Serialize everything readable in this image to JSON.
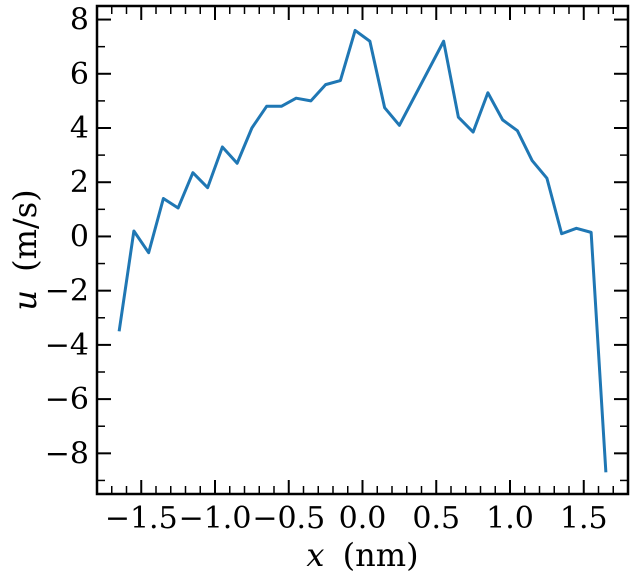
{
  "chart_data": {
    "type": "line",
    "title": "",
    "xlabel": {
      "variable": "x",
      "unit": "(nm)"
    },
    "ylabel": {
      "variable": "u",
      "unit": "(m/s)"
    },
    "xlim": [
      -1.8,
      1.8
    ],
    "ylim": [
      -9.5,
      8.5
    ],
    "xticks": [
      -1.5,
      -1.0,
      -0.5,
      0.0,
      0.5,
      1.0,
      1.5
    ],
    "xtick_labels": [
      "−1.5",
      "−1.0",
      "−0.5",
      "0.0",
      "0.5",
      "1.0",
      "1.5"
    ],
    "yticks": [
      -8,
      -6,
      -4,
      -2,
      0,
      2,
      4,
      6,
      8
    ],
    "ytick_labels": [
      "−8",
      "−6",
      "−4",
      "−2",
      "0",
      "2",
      "4",
      "6",
      "8"
    ],
    "grid": false,
    "series": [
      {
        "color": "#1f77b4",
        "x": [
          -1.65,
          -1.55,
          -1.45,
          -1.35,
          -1.25,
          -1.15,
          -1.05,
          -0.95,
          -0.85,
          -0.75,
          -0.65,
          -0.55,
          -0.45,
          -0.35,
          -0.25,
          -0.15,
          -0.05,
          0.05,
          0.15,
          0.25,
          0.55,
          0.65,
          0.75,
          0.85,
          0.95,
          1.05,
          1.15,
          1.25,
          1.35,
          1.45,
          1.55,
          1.65
        ],
        "y": [
          -3.5,
          0.2,
          -0.6,
          1.4,
          1.05,
          2.35,
          1.8,
          3.3,
          2.7,
          4.0,
          4.8,
          4.8,
          5.1,
          5.0,
          5.6,
          5.75,
          7.6,
          7.2,
          4.75,
          4.1,
          7.2,
          4.4,
          3.85,
          5.3,
          4.3,
          3.9,
          2.8,
          2.15,
          0.1,
          0.3,
          0.15,
          -8.7
        ]
      }
    ]
  }
}
